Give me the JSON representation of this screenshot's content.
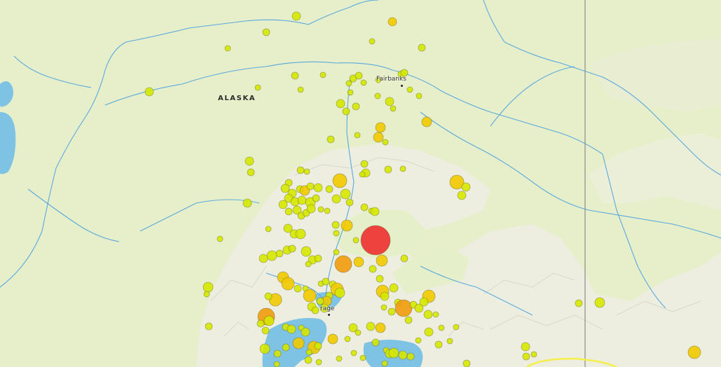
{
  "map": {
    "region_label": "ALASKA",
    "cities": [
      {
        "name": "Fairbanks",
        "shown": "Fairbanks"
      },
      {
        "name": "Anchorage",
        "shown": "rage"
      }
    ],
    "colors": {
      "land": "#e6efc9",
      "mountains": "#f1efe6",
      "water": "#7fc3e4",
      "rivers": "#5aa9df",
      "border": "#8b8b8b",
      "marker_small": "#d5e800",
      "marker_medium": "#f2c900",
      "marker_large": "#f19a0d",
      "marker_major": "#ee2f2f",
      "highlight_outline": "#f4ef4a"
    },
    "marker_legend": [
      "small",
      "medium",
      "large",
      "major"
    ]
  }
}
